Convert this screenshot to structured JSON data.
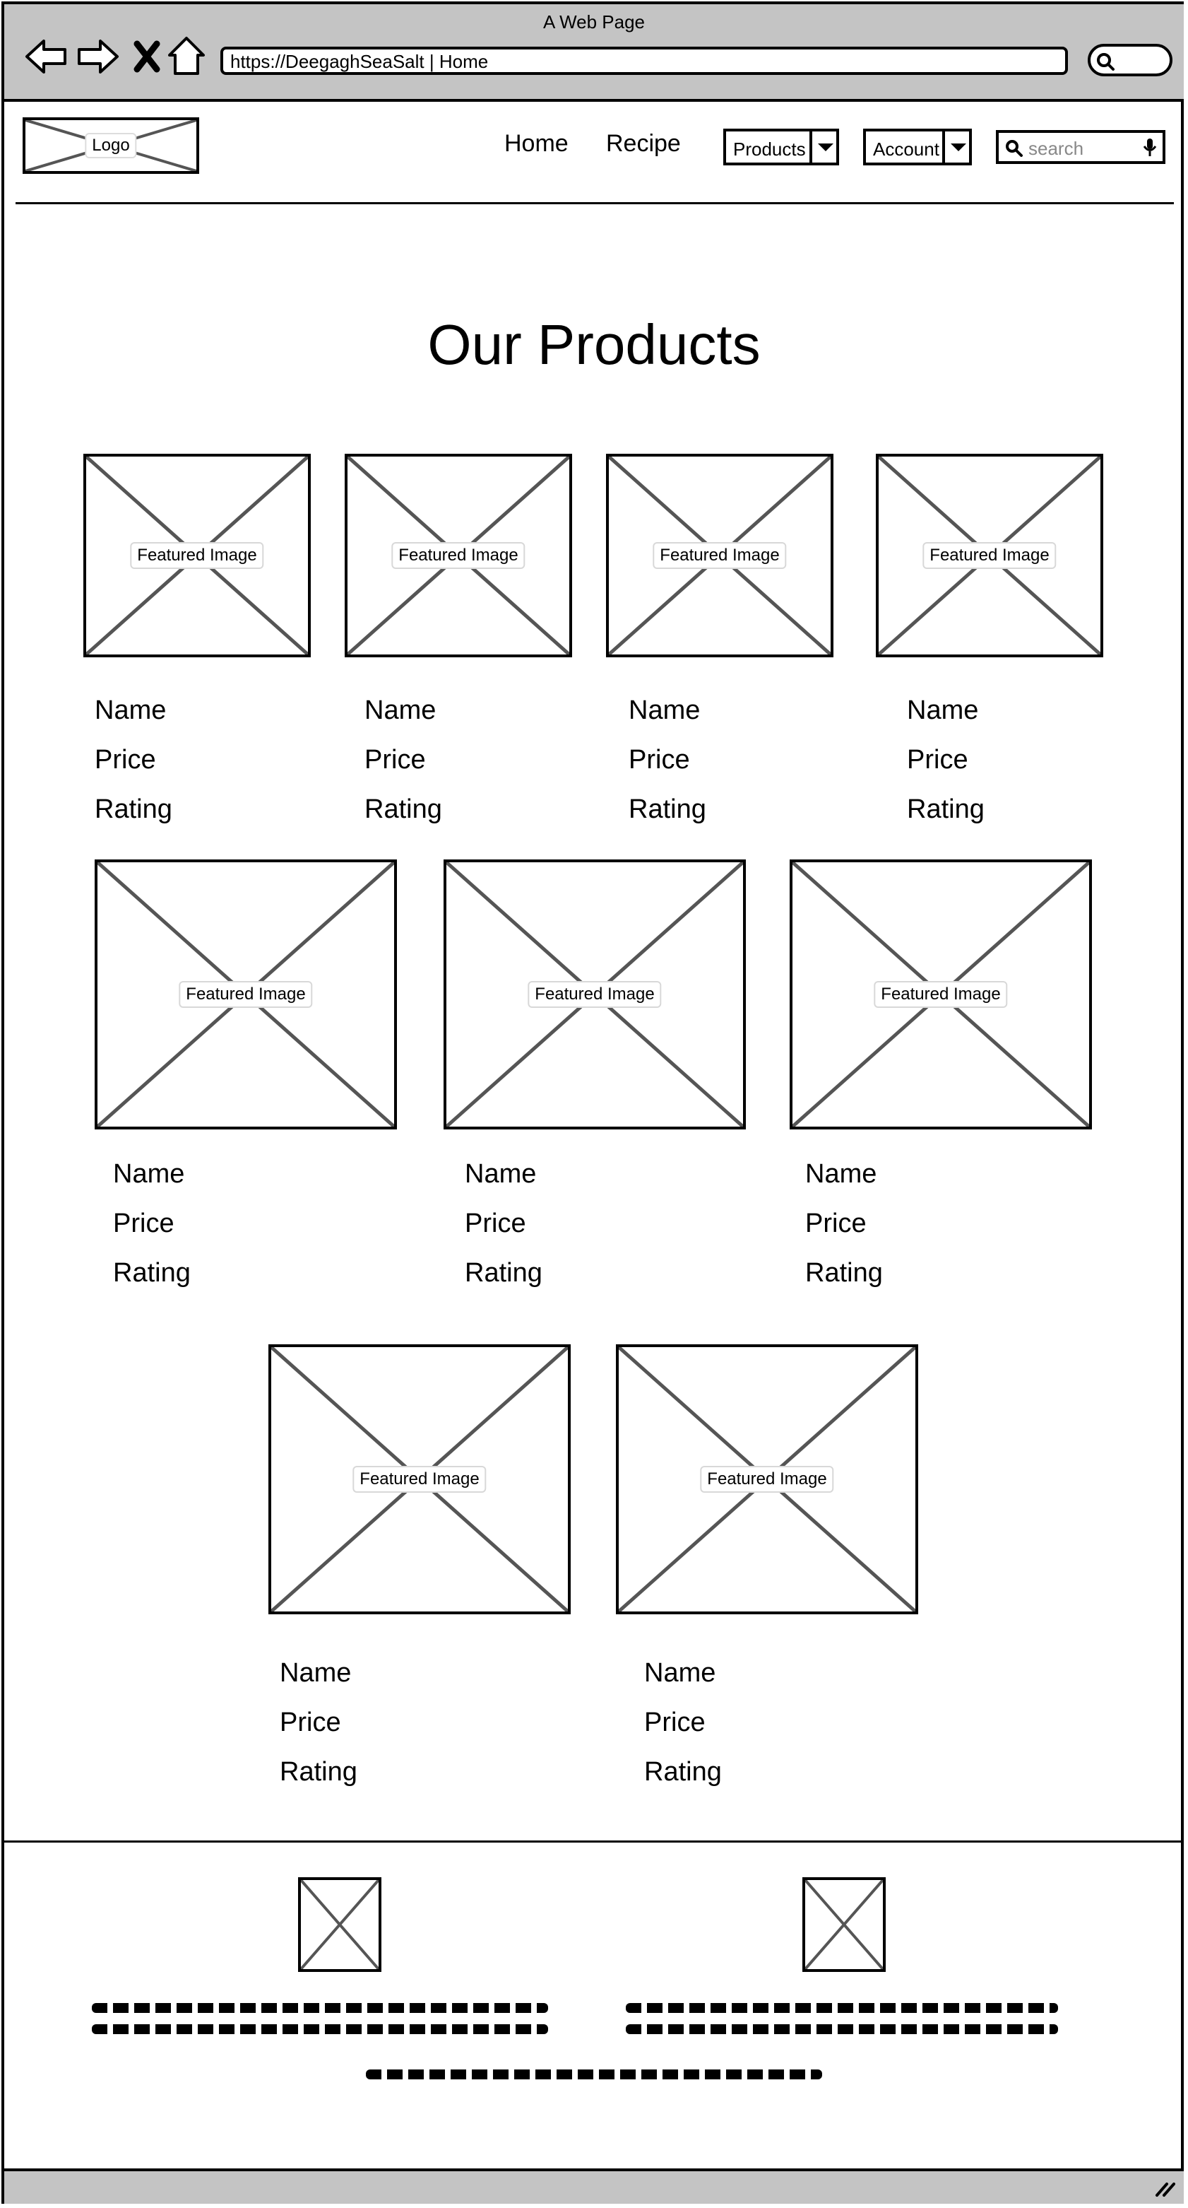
{
  "browser": {
    "window_title": "A Web Page",
    "url": "https://DeegaghSeaSalt | Home"
  },
  "header": {
    "logo_label": "Logo",
    "nav": {
      "home": "Home",
      "recipe": "Recipe"
    },
    "products_dropdown": "Products",
    "account_dropdown": "Account",
    "search_placeholder": "search"
  },
  "main": {
    "title": "Our Products",
    "products": [
      {
        "image_label": "Featured Image",
        "name": "Name",
        "price": "Price",
        "rating": "Rating"
      },
      {
        "image_label": "Featured Image",
        "name": "Name",
        "price": "Price",
        "rating": "Rating"
      },
      {
        "image_label": "Featured Image",
        "name": "Name",
        "price": "Price",
        "rating": "Rating"
      },
      {
        "image_label": "Featured Image",
        "name": "Name",
        "price": "Price",
        "rating": "Rating"
      },
      {
        "image_label": "Featured Image",
        "name": "Name",
        "price": "Price",
        "rating": "Rating"
      },
      {
        "image_label": "Featured Image",
        "name": "Name",
        "price": "Price",
        "rating": "Rating"
      },
      {
        "image_label": "Featured Image",
        "name": "Name",
        "price": "Price",
        "rating": "Rating"
      },
      {
        "image_label": "Featured Image",
        "name": "Name",
        "price": "Price",
        "rating": "Rating"
      },
      {
        "image_label": "Featured Image",
        "name": "Name",
        "price": "Price",
        "rating": "Rating"
      }
    ]
  },
  "icons": {
    "back": "back-arrow-icon",
    "forward": "forward-arrow-icon",
    "close": "close-icon",
    "home": "home-icon",
    "search": "search-icon",
    "microphone": "microphone-icon",
    "resize": "resize-grip-icon"
  }
}
